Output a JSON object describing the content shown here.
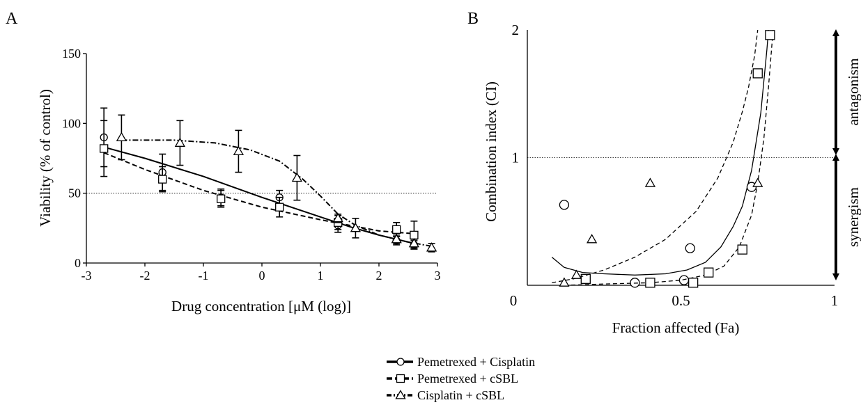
{
  "panels": {
    "A": "A",
    "B": "B"
  },
  "legend": [
    {
      "label": "Pemetrexed + Cisplatin",
      "marker": "circle",
      "dash": "solid"
    },
    {
      "label": "Pemetrexed + cSBL",
      "marker": "square",
      "dash": "dashed"
    },
    {
      "label": "Cisplatin + cSBL",
      "marker": "triangle",
      "dash": "dashdot"
    }
  ],
  "chart_data": [
    {
      "type": "line",
      "panel": "A",
      "xlabel": "Drug concentration [μM (log)]",
      "ylabel": "Viability (% of control)",
      "xlim": [
        -3,
        3
      ],
      "ylim": [
        0,
        150
      ],
      "xticks": [
        "-3",
        "-2",
        "-1",
        "0",
        "1",
        "2",
        "3"
      ],
      "yticks": [
        "0",
        "50",
        "100",
        "150"
      ],
      "reference_line_y": 50,
      "grid": false,
      "series": [
        {
          "name": "Pemetrexed + Cisplatin",
          "marker": "circle",
          "points": [
            {
              "x": -2.7,
              "y": 90,
              "err": 21
            },
            {
              "x": -1.7,
              "y": 65,
              "err": 13
            },
            {
              "x": -0.7,
              "y": 47,
              "err": 6
            },
            {
              "x": 0.3,
              "y": 47,
              "err": 5
            },
            {
              "x": 1.3,
              "y": 27,
              "err": 5
            },
            {
              "x": 2.3,
              "y": 16,
              "err": 3
            },
            {
              "x": 2.6,
              "y": 13,
              "err": 3
            }
          ],
          "fit": [
            [
              -2.7,
              83
            ],
            [
              -2.0,
              75
            ],
            [
              -1.0,
              62
            ],
            [
              0.0,
              47
            ],
            [
              1.0,
              33
            ],
            [
              1.5,
              26
            ],
            [
              2.0,
              20
            ],
            [
              2.6,
              14
            ]
          ]
        },
        {
          "name": "Pemetrexed + cSBL",
          "marker": "square",
          "points": [
            {
              "x": -2.7,
              "y": 82,
              "err": 20
            },
            {
              "x": -1.7,
              "y": 60,
              "err": 9
            },
            {
              "x": -0.7,
              "y": 46,
              "err": 6
            },
            {
              "x": 0.3,
              "y": 40,
              "err": 7
            },
            {
              "x": 1.3,
              "y": 29,
              "err": 5
            },
            {
              "x": 2.3,
              "y": 24,
              "err": 5
            },
            {
              "x": 2.6,
              "y": 20,
              "err": 10
            }
          ],
          "fit": [
            [
              -2.7,
              79
            ],
            [
              -2.0,
              67
            ],
            [
              -1.0,
              52
            ],
            [
              0.0,
              40
            ],
            [
              1.0,
              31
            ],
            [
              1.5,
              27
            ],
            [
              2.0,
              23
            ],
            [
              2.6,
              21
            ]
          ]
        },
        {
          "name": "Cisplatin + cSBL",
          "marker": "triangle",
          "points": [
            {
              "x": -2.4,
              "y": 90,
              "err": 16
            },
            {
              "x": -1.4,
              "y": 86,
              "err": 16
            },
            {
              "x": -0.4,
              "y": 80,
              "err": 15
            },
            {
              "x": 0.6,
              "y": 61,
              "err": 16
            },
            {
              "x": 1.3,
              "y": 32,
              "err": 3
            },
            {
              "x": 1.6,
              "y": 25,
              "err": 7
            },
            {
              "x": 2.3,
              "y": 17,
              "err": 3
            },
            {
              "x": 2.6,
              "y": 14,
              "err": 3
            },
            {
              "x": 2.9,
              "y": 11,
              "err": 3
            }
          ],
          "fit": [
            [
              -2.4,
              88
            ],
            [
              -1.5,
              88
            ],
            [
              -0.8,
              86
            ],
            [
              -0.2,
              81
            ],
            [
              0.3,
              73
            ],
            [
              0.7,
              60
            ],
            [
              1.0,
              48
            ],
            [
              1.3,
              35
            ],
            [
              1.6,
              27
            ],
            [
              2.0,
              20
            ],
            [
              2.5,
              15
            ],
            [
              2.9,
              12
            ]
          ]
        }
      ]
    },
    {
      "type": "scatter",
      "panel": "B",
      "xlabel": "Fraction affected (Fa)",
      "ylabel": "Combination index (CI)",
      "xlim": [
        0,
        1
      ],
      "ylim": [
        0,
        2
      ],
      "xticks": [
        "0",
        "0.5",
        "1"
      ],
      "yticks": [
        "1",
        "2"
      ],
      "reference_line_y": 1,
      "grid": false,
      "annotations": {
        "antagonism": "antagonism",
        "synergism": "synergism"
      },
      "series": [
        {
          "name": "Pemetrexed + Cisplatin",
          "marker": "circle",
          "points": [
            [
              0.12,
              0.63
            ],
            [
              0.35,
              0.02
            ],
            [
              0.51,
              0.04
            ],
            [
              0.53,
              0.29
            ],
            [
              0.73,
              0.77
            ]
          ],
          "fit": [
            [
              0.08,
              0.22
            ],
            [
              0.12,
              0.14
            ],
            [
              0.18,
              0.1
            ],
            [
              0.25,
              0.09
            ],
            [
              0.35,
              0.08
            ],
            [
              0.45,
              0.09
            ],
            [
              0.52,
              0.12
            ],
            [
              0.58,
              0.18
            ],
            [
              0.63,
              0.3
            ],
            [
              0.67,
              0.46
            ],
            [
              0.7,
              0.62
            ],
            [
              0.73,
              0.9
            ],
            [
              0.76,
              1.35
            ],
            [
              0.78,
              1.85
            ],
            [
              0.785,
              2.0
            ]
          ]
        },
        {
          "name": "Pemetrexed + cSBL",
          "marker": "square",
          "points": [
            [
              0.19,
              0.05
            ],
            [
              0.4,
              0.02
            ],
            [
              0.54,
              0.02
            ],
            [
              0.59,
              0.1
            ],
            [
              0.7,
              0.28
            ],
            [
              0.75,
              1.66
            ],
            [
              0.79,
              1.96
            ]
          ],
          "fit": [
            [
              0.12,
              0.0
            ],
            [
              0.25,
              0.01
            ],
            [
              0.4,
              0.02
            ],
            [
              0.5,
              0.04
            ],
            [
              0.58,
              0.08
            ],
            [
              0.64,
              0.15
            ],
            [
              0.69,
              0.3
            ],
            [
              0.73,
              0.55
            ],
            [
              0.75,
              0.8
            ],
            [
              0.77,
              1.15
            ],
            [
              0.785,
              1.55
            ],
            [
              0.8,
              2.0
            ]
          ]
        },
        {
          "name": "Cisplatin + cSBL",
          "marker": "triangle",
          "points": [
            [
              0.12,
              0.02
            ],
            [
              0.16,
              0.08
            ],
            [
              0.21,
              0.36
            ],
            [
              0.4,
              0.8
            ],
            [
              0.75,
              0.8
            ]
          ],
          "fit": [
            [
              0.08,
              0.02
            ],
            [
              0.15,
              0.05
            ],
            [
              0.25,
              0.12
            ],
            [
              0.35,
              0.22
            ],
            [
              0.45,
              0.36
            ],
            [
              0.55,
              0.58
            ],
            [
              0.62,
              0.84
            ],
            [
              0.67,
              1.12
            ],
            [
              0.7,
              1.36
            ],
            [
              0.72,
              1.55
            ],
            [
              0.74,
              1.8
            ],
            [
              0.75,
              2.0
            ]
          ]
        }
      ]
    }
  ]
}
